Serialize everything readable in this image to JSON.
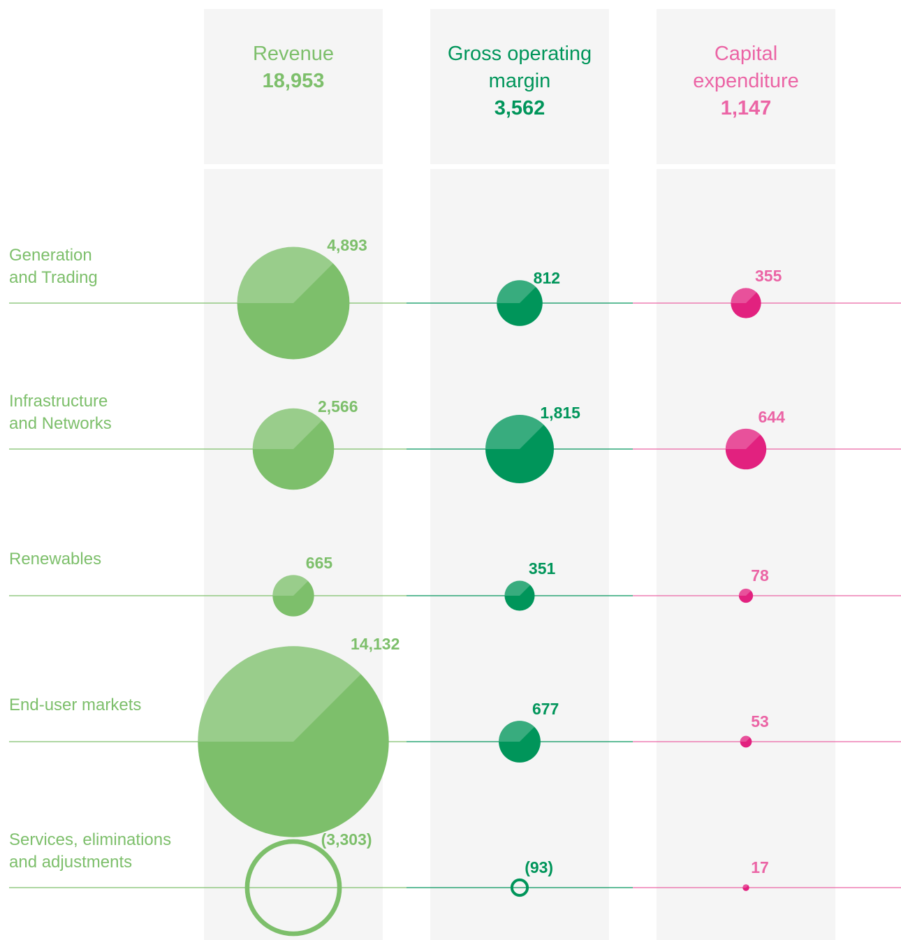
{
  "chart_data": {
    "type": "bubble",
    "categories": [
      "Generation\nand Trading",
      "Infrastructure\nand Networks",
      "Renewables",
      "End-user markets",
      "Services, eliminations\nand adjustments"
    ],
    "series": [
      {
        "name": "Revenue",
        "total": 18953,
        "total_label": "18,953",
        "color": "#7dbf6b",
        "values": [
          4893,
          2566,
          665,
          14132,
          -3303
        ],
        "value_labels": [
          "4,893",
          "2,566",
          "665",
          "14,132",
          "(3,303)"
        ]
      },
      {
        "name": "Gross operating\nmargin",
        "total": 3562,
        "total_label": "3,562",
        "color": "#00955a",
        "values": [
          812,
          1815,
          351,
          677,
          -93
        ],
        "value_labels": [
          "812",
          "1,815",
          "351",
          "677",
          "(93)"
        ]
      },
      {
        "name": "Capital\nexpenditure",
        "total": 1147,
        "total_label": "1,147",
        "color": "#e2217f",
        "values": [
          355,
          644,
          78,
          53,
          17
        ],
        "value_labels": [
          "355",
          "644",
          "78",
          "53",
          "17"
        ]
      }
    ]
  }
}
